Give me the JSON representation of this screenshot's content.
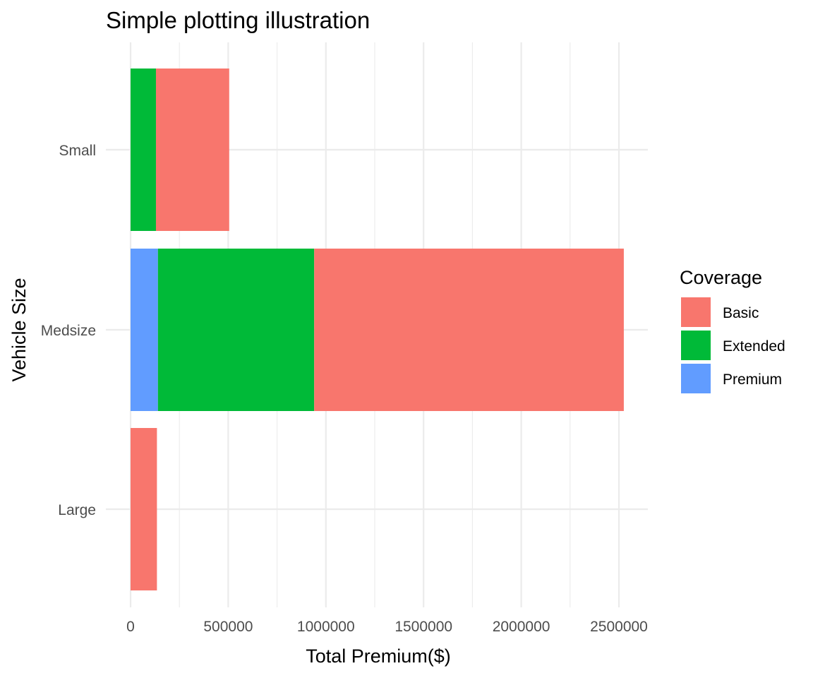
{
  "chart_data": {
    "type": "bar",
    "orientation": "horizontal",
    "stacked": true,
    "title": "Simple plotting illustration",
    "xlabel": "Total Premium($)",
    "ylabel": "Vehicle Size",
    "categories": [
      "Small",
      "Medsize",
      "Large"
    ],
    "series": [
      {
        "name": "Basic",
        "color": "#F8766D",
        "values": [
          375000,
          1585000,
          135000
        ]
      },
      {
        "name": "Extended",
        "color": "#00BA38",
        "values": [
          130000,
          800000,
          0
        ]
      },
      {
        "name": "Premium",
        "color": "#619CFF",
        "values": [
          0,
          140000,
          0
        ]
      }
    ],
    "stack_order": [
      "Premium",
      "Extended",
      "Basic"
    ],
    "xlim": [
      0,
      2650000
    ],
    "x_ticks": [
      0,
      500000,
      1000000,
      1500000,
      2000000,
      2500000
    ],
    "x_tick_labels": [
      "0",
      "500000",
      "1000000",
      "1500000",
      "2000000",
      "2500000"
    ],
    "legend": {
      "title": "Coverage",
      "position": "right",
      "items": [
        "Basic",
        "Extended",
        "Premium"
      ]
    },
    "grid": true,
    "theme": "minimal"
  }
}
